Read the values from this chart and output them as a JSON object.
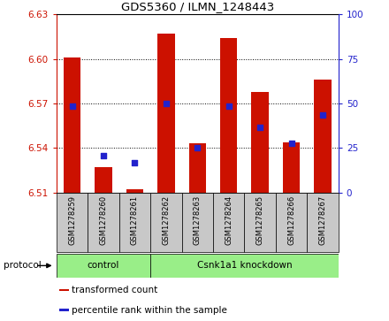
{
  "title": "GDS5360 / ILMN_1248443",
  "samples": [
    "GSM1278259",
    "GSM1278260",
    "GSM1278261",
    "GSM1278262",
    "GSM1278263",
    "GSM1278264",
    "GSM1278265",
    "GSM1278266",
    "GSM1278267"
  ],
  "red_values": [
    6.601,
    6.527,
    6.512,
    6.617,
    6.543,
    6.614,
    6.578,
    6.544,
    6.586
  ],
  "blue_values": [
    6.568,
    6.535,
    6.53,
    6.57,
    6.54,
    6.568,
    6.554,
    6.543,
    6.562
  ],
  "y_min": 6.51,
  "y_max": 6.63,
  "y_ticks": [
    6.51,
    6.54,
    6.57,
    6.6,
    6.63
  ],
  "right_y_ticks": [
    0,
    25,
    50,
    75,
    100
  ],
  "bar_color": "#cc1100",
  "dot_color": "#2222cc",
  "protocol_color": "#99ee88",
  "bg_color": "#c8c8c8",
  "legend_items": [
    {
      "color": "#cc1100",
      "label": "transformed count"
    },
    {
      "color": "#2222cc",
      "label": "percentile rank within the sample"
    }
  ],
  "fig_width": 4.4,
  "fig_height": 3.63,
  "dpi": 100
}
